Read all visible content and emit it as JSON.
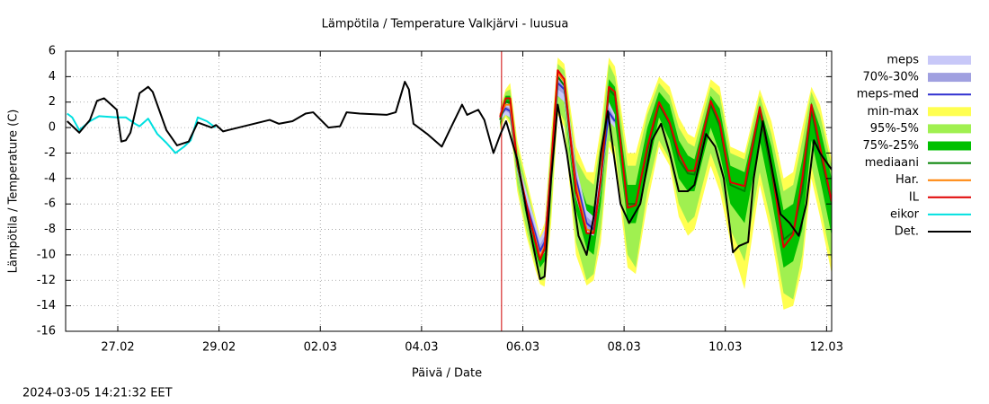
{
  "chart_data": {
    "type": "line",
    "title": "Lämpötila / Temperature   Valkjärvi - luusua",
    "xlabel": "Päivä / Date",
    "ylabel": "Lämpötila / Temperature (C)",
    "timestamp": "2024-03-05 14:21:32 EET",
    "xlim": [
      -0.03,
      15.1
    ],
    "ylim": [
      -16,
      6
    ],
    "xticks": [
      {
        "value": 1,
        "label": "27.02"
      },
      {
        "value": 3,
        "label": "29.02"
      },
      {
        "value": 5,
        "label": "02.03"
      },
      {
        "value": 7,
        "label": "04.03"
      },
      {
        "value": 9,
        "label": "06.03"
      },
      {
        "value": 11,
        "label": "08.03"
      },
      {
        "value": 13,
        "label": "10.03"
      },
      {
        "value": 15,
        "label": "12.03"
      }
    ],
    "yticks": [
      -16,
      -14,
      -12,
      -10,
      -8,
      -6,
      -4,
      -2,
      0,
      2,
      4,
      6
    ],
    "grid": true,
    "legend": "right",
    "now_x": 8.58,
    "now_color": "#d00000",
    "series": [
      {
        "name": "meps",
        "kind": "band",
        "color": "#c8c8f8",
        "x": [
          8.55,
          8.66,
          8.75,
          8.89,
          9.07,
          9.25,
          9.34,
          9.43,
          9.56,
          9.69,
          9.82,
          10.05,
          10.26,
          10.4,
          10.54,
          10.7,
          10.82
        ],
        "high": [
          1.5,
          2,
          1.8,
          -2.5,
          -5,
          -7.5,
          -8.7,
          -8,
          -2,
          4.5,
          4,
          -3,
          -6.5,
          -7,
          -3,
          2,
          1
        ],
        "low": [
          0.5,
          1,
          0.8,
          -3.5,
          -6.8,
          -9.2,
          -10.3,
          -9.8,
          -5,
          2.5,
          2,
          -5.5,
          -8.3,
          -8.5,
          -5,
          0.5,
          0
        ]
      },
      {
        "name": "70%-30%",
        "kind": "band",
        "color": "#a0a0e0",
        "x": [
          8.55,
          8.66,
          8.75,
          8.89,
          9.07,
          9.25,
          9.34,
          9.43,
          9.56,
          9.69,
          9.82,
          10.05,
          10.26,
          10.4,
          10.54,
          10.7,
          10.82
        ],
        "high": [
          1.2,
          1.7,
          1.5,
          -2.8,
          -5.6,
          -8,
          -9.2,
          -8.5,
          -2.8,
          4,
          3.4,
          -3.6,
          -7,
          -7.5,
          -3.6,
          1.6,
          0.7
        ],
        "low": [
          0.8,
          1.3,
          1.1,
          -3.2,
          -6.3,
          -8.7,
          -9.9,
          -9.3,
          -4.2,
          3,
          2.6,
          -4.9,
          -7.9,
          -8.2,
          -4.5,
          0.9,
          0.3
        ]
      },
      {
        "name": "meps-med",
        "kind": "line",
        "color": "#3030d0",
        "x": [
          8.55,
          8.66,
          8.75,
          8.89,
          9.07,
          9.25,
          9.34,
          9.43,
          9.56,
          9.69,
          9.82,
          10.05,
          10.26,
          10.4,
          10.54,
          10.7,
          10.82
        ],
        "values": [
          0.9,
          1.5,
          1.3,
          -3,
          -6,
          -8.4,
          -9.7,
          -9,
          -3.5,
          3.5,
          3,
          -4,
          -7.5,
          -8,
          -4,
          1.2,
          0.5
        ]
      },
      {
        "name": "min-max",
        "kind": "band",
        "color": "#ffff50",
        "x": [
          8.55,
          8.66,
          8.75,
          8.89,
          9.07,
          9.25,
          9.34,
          9.43,
          9.56,
          9.69,
          9.82,
          10.05,
          10.26,
          10.4,
          10.54,
          10.7,
          10.82,
          11.07,
          11.23,
          11.46,
          11.69,
          11.9,
          12.08,
          12.26,
          12.39,
          12.71,
          12.89,
          13.1,
          13.38,
          13.68,
          13.91,
          14.15,
          14.34,
          14.52,
          14.7,
          14.87,
          15.1
        ],
        "high": [
          1.5,
          3,
          3.5,
          -1,
          -4,
          -7,
          -8.5,
          -7.5,
          -0.5,
          5.5,
          5,
          -1.5,
          -3.5,
          -3.5,
          0,
          5.5,
          4.8,
          -2,
          -2,
          1.5,
          4,
          3.2,
          0.8,
          -0.5,
          -0.8,
          3.8,
          3.2,
          -1.5,
          -2,
          3,
          0.5,
          -4,
          -3.5,
          0,
          3.2,
          1.8,
          -2.5
        ],
        "low": [
          -0.2,
          0.8,
          0.2,
          -5,
          -8.5,
          -11.2,
          -12.3,
          -12.5,
          -7.5,
          1,
          0,
          -10,
          -12.4,
          -12,
          -9,
          -1.5,
          -2.5,
          -11,
          -11.5,
          -6,
          -1.5,
          -3,
          -7,
          -8.5,
          -8,
          -3,
          -5,
          -9,
          -12.7,
          -4.5,
          -8.5,
          -14.3,
          -14,
          -11,
          -4,
          -7,
          -11.5
        ]
      },
      {
        "name": "95%-5%",
        "kind": "band",
        "color": "#a0f050",
        "x": [
          8.55,
          8.66,
          8.75,
          8.89,
          9.07,
          9.25,
          9.34,
          9.43,
          9.56,
          9.69,
          9.82,
          10.05,
          10.26,
          10.4,
          10.54,
          10.7,
          10.82,
          11.07,
          11.23,
          11.46,
          11.69,
          11.9,
          12.08,
          12.26,
          12.39,
          12.71,
          12.89,
          13.1,
          13.38,
          13.68,
          13.91,
          14.15,
          14.34,
          14.52,
          14.7,
          14.87,
          15.1
        ],
        "high": [
          1.2,
          2.8,
          3,
          -1.5,
          -4.5,
          -7.5,
          -9,
          -8,
          -1.2,
          5,
          4.5,
          -2.5,
          -4,
          -4.5,
          -1,
          5,
          4,
          -3,
          -3,
          1,
          3.5,
          2.5,
          0,
          -1.2,
          -1.5,
          3.2,
          2.5,
          -2,
          -2.5,
          2.5,
          -0.5,
          -5,
          -4.5,
          -1,
          2.8,
          1,
          -3
        ],
        "low": [
          0,
          1,
          0.5,
          -4.5,
          -8,
          -10.8,
          -12,
          -12,
          -6.5,
          1.5,
          0.5,
          -9,
          -12,
          -11.5,
          -8,
          -1,
          -1.5,
          -10,
          -11,
          -5,
          -1,
          -2.5,
          -6,
          -7.5,
          -7,
          -2,
          -4,
          -8,
          -10.5,
          -3.5,
          -7.5,
          -13,
          -13.5,
          -10,
          -3,
          -6,
          -10.5
        ]
      },
      {
        "name": "75%-25%",
        "kind": "band",
        "color": "#00c000",
        "x": [
          8.55,
          8.66,
          8.75,
          8.89,
          9.07,
          9.25,
          9.34,
          9.43,
          9.56,
          9.69,
          9.82,
          10.05,
          10.26,
          10.4,
          10.54,
          10.7,
          10.82,
          11.07,
          11.23,
          11.46,
          11.69,
          11.9,
          12.08,
          12.26,
          12.39,
          12.71,
          12.89,
          13.1,
          13.38,
          13.68,
          13.91,
          14.15,
          14.34,
          14.52,
          14.7,
          14.87,
          15.1
        ],
        "high": [
          1,
          2.5,
          2.5,
          -2.2,
          -5.5,
          -8.3,
          -9.6,
          -8.8,
          -2,
          4.5,
          3.8,
          -3.5,
          -6,
          -6.2,
          -2.5,
          3.8,
          3.2,
          -4.5,
          -4.5,
          0,
          2.8,
          1.8,
          -1,
          -2.2,
          -2.5,
          2.5,
          1.5,
          -3,
          -3.5,
          1.8,
          -1.5,
          -6.5,
          -6,
          -2.5,
          2,
          0,
          -4
        ],
        "low": [
          0.2,
          1.5,
          1.2,
          -3.5,
          -7,
          -9.8,
          -11,
          -10.5,
          -5,
          2.5,
          2,
          -6.5,
          -9.5,
          -10,
          -6,
          1,
          0.5,
          -7.5,
          -7.5,
          -3.5,
          0.8,
          -1,
          -4,
          -5,
          -5,
          0,
          -2,
          -6,
          -7.5,
          -1,
          -5.5,
          -11,
          -10.5,
          -8,
          -1,
          -4,
          -8.5
        ]
      },
      {
        "name": "mediaani",
        "kind": "line",
        "color": "#008000",
        "x": [
          8.55,
          8.66,
          8.75,
          8.89,
          9.07,
          9.25,
          9.34,
          9.43,
          9.56,
          9.69,
          9.82,
          10.05,
          10.26,
          10.4,
          10.54,
          10.7,
          10.82,
          11.07,
          11.23,
          11.46,
          11.69,
          11.9,
          12.08,
          12.26,
          12.39,
          12.71,
          12.89,
          13.1,
          13.38,
          13.68,
          13.91,
          14.15,
          14.34,
          14.52,
          14.7,
          14.87,
          15.1
        ],
        "values": [
          0.6,
          2,
          2,
          -2.9,
          -6.3,
          -9,
          -10.2,
          -9.6,
          -3.5,
          4,
          3.3,
          -5,
          -8,
          -8.2,
          -4.2,
          3,
          2.5,
          -6,
          -6,
          -1.8,
          1.8,
          0.3,
          -2.5,
          -3.6,
          -3.7,
          1.8,
          0.1,
          -4.5,
          -5,
          1.2,
          -3.5,
          -8.8,
          -8.2,
          -5,
          1.4,
          -2,
          -6
        ]
      },
      {
        "name": "Har.",
        "kind": "line",
        "color": "#ff8000",
        "x": [
          8.55,
          8.66,
          8.75,
          8.89,
          9.07,
          9.25,
          9.34,
          9.43,
          9.56,
          9.69,
          9.82,
          10.05,
          10.26,
          10.4
        ],
        "values": [
          1,
          1.8,
          1.8,
          -2.8,
          -6.2,
          -8.8,
          -10.2,
          -9.3,
          -3,
          4.3,
          3.6,
          -4.5,
          -8,
          -8.2
        ]
      },
      {
        "name": "IL",
        "kind": "line",
        "color": "#e00000",
        "x": [
          8.55,
          8.66,
          8.75,
          8.89,
          9.07,
          9.25,
          9.34,
          9.43,
          9.56,
          9.69,
          9.82,
          10.05,
          10.26,
          10.4,
          10.54,
          10.7,
          10.82,
          11.07,
          11.23,
          11.46,
          11.69,
          11.9,
          12.08,
          12.26,
          12.39,
          12.71,
          12.89,
          13.1,
          13.38,
          13.68,
          13.91,
          14.15,
          14.34,
          14.52,
          14.7,
          14.87,
          15.1
        ],
        "values": [
          0.8,
          2.3,
          2.3,
          -2.7,
          -6,
          -9,
          -10.4,
          -9.5,
          -3,
          4.5,
          3.8,
          -5,
          -8.3,
          -8.3,
          -4,
          3.2,
          2.8,
          -6.3,
          -6.1,
          -1.5,
          2,
          0.4,
          -2,
          -3.4,
          -3.4,
          2.1,
          0.4,
          -4.3,
          -4.6,
          1.6,
          -3,
          -9.4,
          -8.4,
          -4,
          1.8,
          -1.5,
          -5.8
        ]
      },
      {
        "name": "eikor",
        "kind": "line",
        "color": "#00e0e0",
        "x": [
          0,
          0.1,
          0.24,
          0.45,
          0.63,
          0.98,
          1.16,
          1.34,
          1.43,
          1.6,
          1.78,
          1.96,
          2.14,
          2.31,
          2.44,
          2.58,
          2.76,
          2.93
        ],
        "values": [
          1.1,
          0.8,
          -0.2,
          0.5,
          0.9,
          0.8,
          0.8,
          0.3,
          0.1,
          0.7,
          -0.5,
          -1.2,
          -2,
          -1.5,
          -1,
          0.8,
          0.5,
          0
        ]
      },
      {
        "name": "Det.",
        "kind": "line",
        "color": "#000000",
        "x": [
          0,
          0.24,
          0.45,
          0.59,
          0.73,
          0.98,
          1.07,
          1.16,
          1.25,
          1.43,
          1.6,
          1.69,
          1.96,
          2.17,
          2.4,
          2.58,
          2.85,
          2.94,
          3.08,
          4,
          4.18,
          4.45,
          4.71,
          4.86,
          5.16,
          5.39,
          5.52,
          5.78,
          6.31,
          6.49,
          6.67,
          6.75,
          6.84,
          7.11,
          7.4,
          7.58,
          7.8,
          7.9,
          8.12,
          8.24,
          8.42,
          8.56,
          8.67,
          8.89,
          9.07,
          9.19,
          9.34,
          9.43,
          9.56,
          9.69,
          9.87,
          10.1,
          10.26,
          10.4,
          10.54,
          10.68,
          10.93,
          11.1,
          11.32,
          11.55,
          11.73,
          11.9,
          12.08,
          12.26,
          12.39,
          12.62,
          12.8,
          12.97,
          13.15,
          13.27,
          13.45,
          13.56,
          13.74,
          13.91,
          14.09,
          14.27,
          14.45,
          14.6,
          14.75,
          14.87,
          15.1
        ],
        "values": [
          0.5,
          -0.4,
          0.6,
          2.1,
          2.3,
          1.4,
          -1.1,
          -1,
          -0.4,
          2.7,
          3.2,
          2.8,
          -0.2,
          -1.4,
          -1.1,
          0.4,
          0,
          0.2,
          -0.3,
          0.6,
          0.3,
          0.5,
          1.1,
          1.2,
          0,
          0.1,
          1.2,
          1.1,
          1,
          1.2,
          3.6,
          3,
          0.3,
          -0.5,
          -1.5,
          0,
          1.8,
          1,
          1.4,
          0.6,
          -2,
          -0.5,
          0.5,
          -2.5,
          -6.5,
          -9,
          -11.9,
          -11.7,
          -4,
          1.8,
          -2,
          -8.5,
          -10,
          -7,
          -2,
          1.3,
          -6,
          -7.5,
          -6,
          -1,
          0.3,
          -2,
          -5,
          -5,
          -4.5,
          -0.5,
          -1.5,
          -4,
          -9.8,
          -9.3,
          -9,
          -4,
          0.5,
          -3,
          -6.8,
          -7.5,
          -8.5,
          -6,
          -1,
          -2,
          -3.3
        ]
      }
    ]
  }
}
